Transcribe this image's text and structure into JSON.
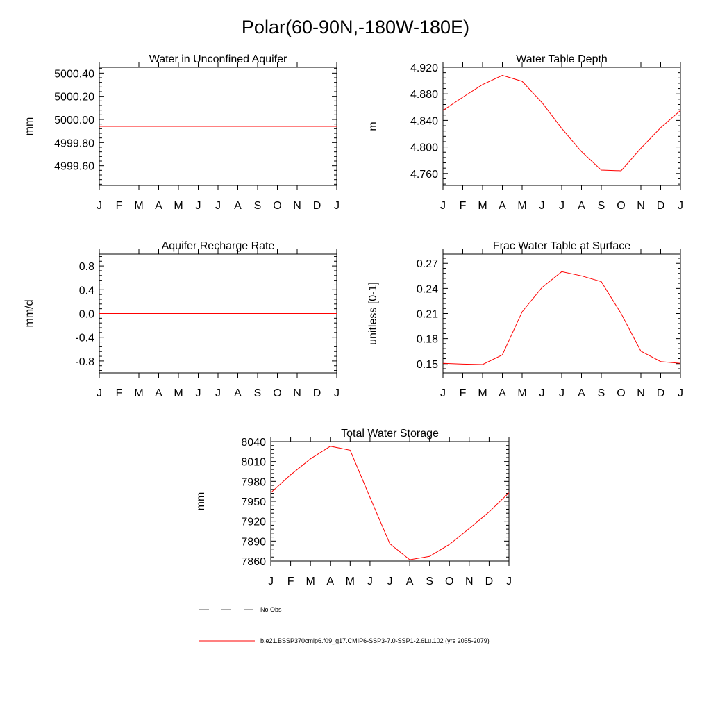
{
  "title": "Polar(60-90N,-180W-180E)",
  "chart_data": [
    {
      "type": "line",
      "title": "Water in Unconfined Aquifer",
      "xlabel": "",
      "ylabel": "mm",
      "categories": [
        "J",
        "F",
        "M",
        "A",
        "M",
        "J",
        "J",
        "A",
        "S",
        "O",
        "N",
        "D",
        "J"
      ],
      "yticks": [
        4999.6,
        4999.8,
        5000.0,
        5000.2,
        5000.4
      ],
      "ytick_labels": [
        "4999.60",
        "4999.80",
        "5000.00",
        "5000.20",
        "5000.40"
      ],
      "ylim": [
        4999.43,
        5000.45
      ],
      "series": [
        {
          "color": "#ff0000",
          "values": [
            4999.94,
            4999.94,
            4999.94,
            4999.94,
            4999.94,
            4999.94,
            4999.94,
            4999.94,
            4999.94,
            4999.94,
            4999.94,
            4999.94,
            4999.94
          ]
        }
      ]
    },
    {
      "type": "line",
      "title": "Water Table Depth",
      "xlabel": "",
      "ylabel": "m",
      "categories": [
        "J",
        "F",
        "M",
        "A",
        "M",
        "J",
        "J",
        "A",
        "S",
        "O",
        "N",
        "D",
        "J"
      ],
      "yticks": [
        4.76,
        4.8,
        4.84,
        4.88,
        4.92
      ],
      "ytick_labels": [
        "4.760",
        "4.800",
        "4.840",
        "4.880",
        "4.920"
      ],
      "ylim": [
        4.742,
        4.92
      ],
      "series": [
        {
          "color": "#ff0000",
          "values": [
            4.855,
            4.875,
            4.894,
            4.908,
            4.899,
            4.867,
            4.828,
            4.793,
            4.765,
            4.764,
            4.798,
            4.829,
            4.855
          ]
        }
      ]
    },
    {
      "type": "line",
      "title": "Aquifer Recharge Rate",
      "xlabel": "",
      "ylabel": "mm/d",
      "categories": [
        "J",
        "F",
        "M",
        "A",
        "M",
        "J",
        "J",
        "A",
        "S",
        "O",
        "N",
        "D",
        "J"
      ],
      "yticks": [
        -0.8,
        -0.4,
        0.0,
        0.4,
        0.8
      ],
      "ytick_labels": [
        "-0.8",
        "-0.4",
        "0.0",
        "0.4",
        "0.8"
      ],
      "ylim": [
        -1.0,
        1.0
      ],
      "series": [
        {
          "color": "#ff0000",
          "values": [
            0,
            0,
            0,
            0,
            0,
            0,
            0,
            0,
            0,
            0,
            0,
            0,
            0
          ]
        }
      ]
    },
    {
      "type": "line",
      "title": "Frac Water Table at Surface",
      "xlabel": "",
      "ylabel": "unitless [0-1]",
      "categories": [
        "J",
        "F",
        "M",
        "A",
        "M",
        "J",
        "J",
        "A",
        "S",
        "O",
        "N",
        "D",
        "J"
      ],
      "yticks": [
        0.15,
        0.18,
        0.21,
        0.24,
        0.27
      ],
      "ytick_labels": [
        "0.15",
        "0.18",
        "0.21",
        "0.24",
        "0.27"
      ],
      "ylim": [
        0.139,
        0.281
      ],
      "series": [
        {
          "color": "#ff0000",
          "values": [
            0.1505,
            0.1495,
            0.149,
            0.1605,
            0.212,
            0.241,
            0.26,
            0.255,
            0.248,
            0.21,
            0.165,
            0.1525,
            0.1505
          ]
        }
      ]
    },
    {
      "type": "line",
      "title": "Total Water Storage",
      "xlabel": "",
      "ylabel": "mm",
      "categories": [
        "J",
        "F",
        "M",
        "A",
        "M",
        "J",
        "J",
        "A",
        "S",
        "O",
        "N",
        "D",
        "J"
      ],
      "yticks": [
        7860,
        7890,
        7920,
        7950,
        7980,
        8010,
        8040
      ],
      "ytick_labels": [
        "7860",
        "7890",
        "7920",
        "7950",
        "7980",
        "8010",
        "8040"
      ],
      "ylim": [
        7860,
        8040
      ],
      "series": [
        {
          "color": "#ff0000",
          "values": [
            7963,
            7990,
            8014,
            8033,
            8027,
            7956,
            7886,
            7862,
            7867,
            7885,
            7909,
            7934,
            7963
          ]
        }
      ]
    }
  ],
  "legend": [
    {
      "label": "No Obs",
      "style": "dashed",
      "color": "#555555"
    },
    {
      "label": "b.e21.BSSP370cmip6.f09_g17.CMIP6-SSP3-7.0-SSP1-2.6Lu.102 (yrs 2055-2079)",
      "style": "solid",
      "color": "#ff0000"
    }
  ]
}
